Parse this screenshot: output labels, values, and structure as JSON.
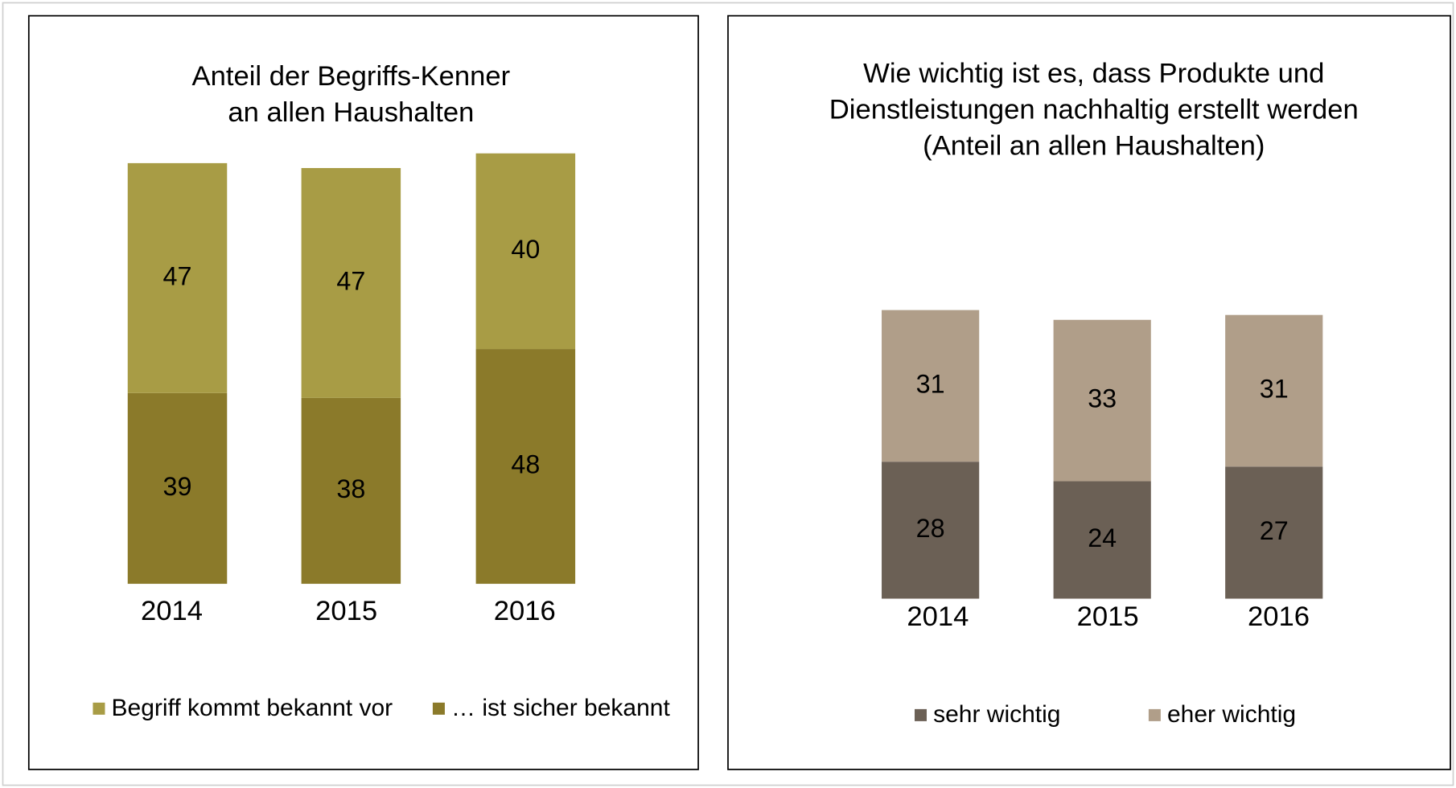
{
  "chart_data": [
    {
      "type": "bar",
      "stacked": true,
      "title": [
        "Anteil der Begriffs-Kenner",
        "an allen Haushalten"
      ],
      "categories": [
        "2014",
        "2015",
        "2016"
      ],
      "series": [
        {
          "name": "Begriff kommt bekannt vor",
          "color": "#a89c45",
          "values": [
            47,
            47,
            40
          ]
        },
        {
          "name": "… ist sicher bekannt",
          "color": "#8b7a2a",
          "values": [
            39,
            38,
            48
          ]
        }
      ]
    },
    {
      "type": "bar",
      "stacked": true,
      "title": [
        "Wie wichtig ist es, dass Produkte und",
        "Dienstleistungen nachhaltig erstellt werden",
        "(Anteil an allen Haushalten)"
      ],
      "categories": [
        "2014",
        "2015",
        "2016"
      ],
      "series": [
        {
          "name": "sehr wichtig",
          "color": "#6b6055",
          "values": [
            28,
            24,
            27
          ]
        },
        {
          "name": "eher wichtig",
          "color": "#b09e89",
          "values": [
            31,
            33,
            31
          ]
        }
      ]
    }
  ]
}
